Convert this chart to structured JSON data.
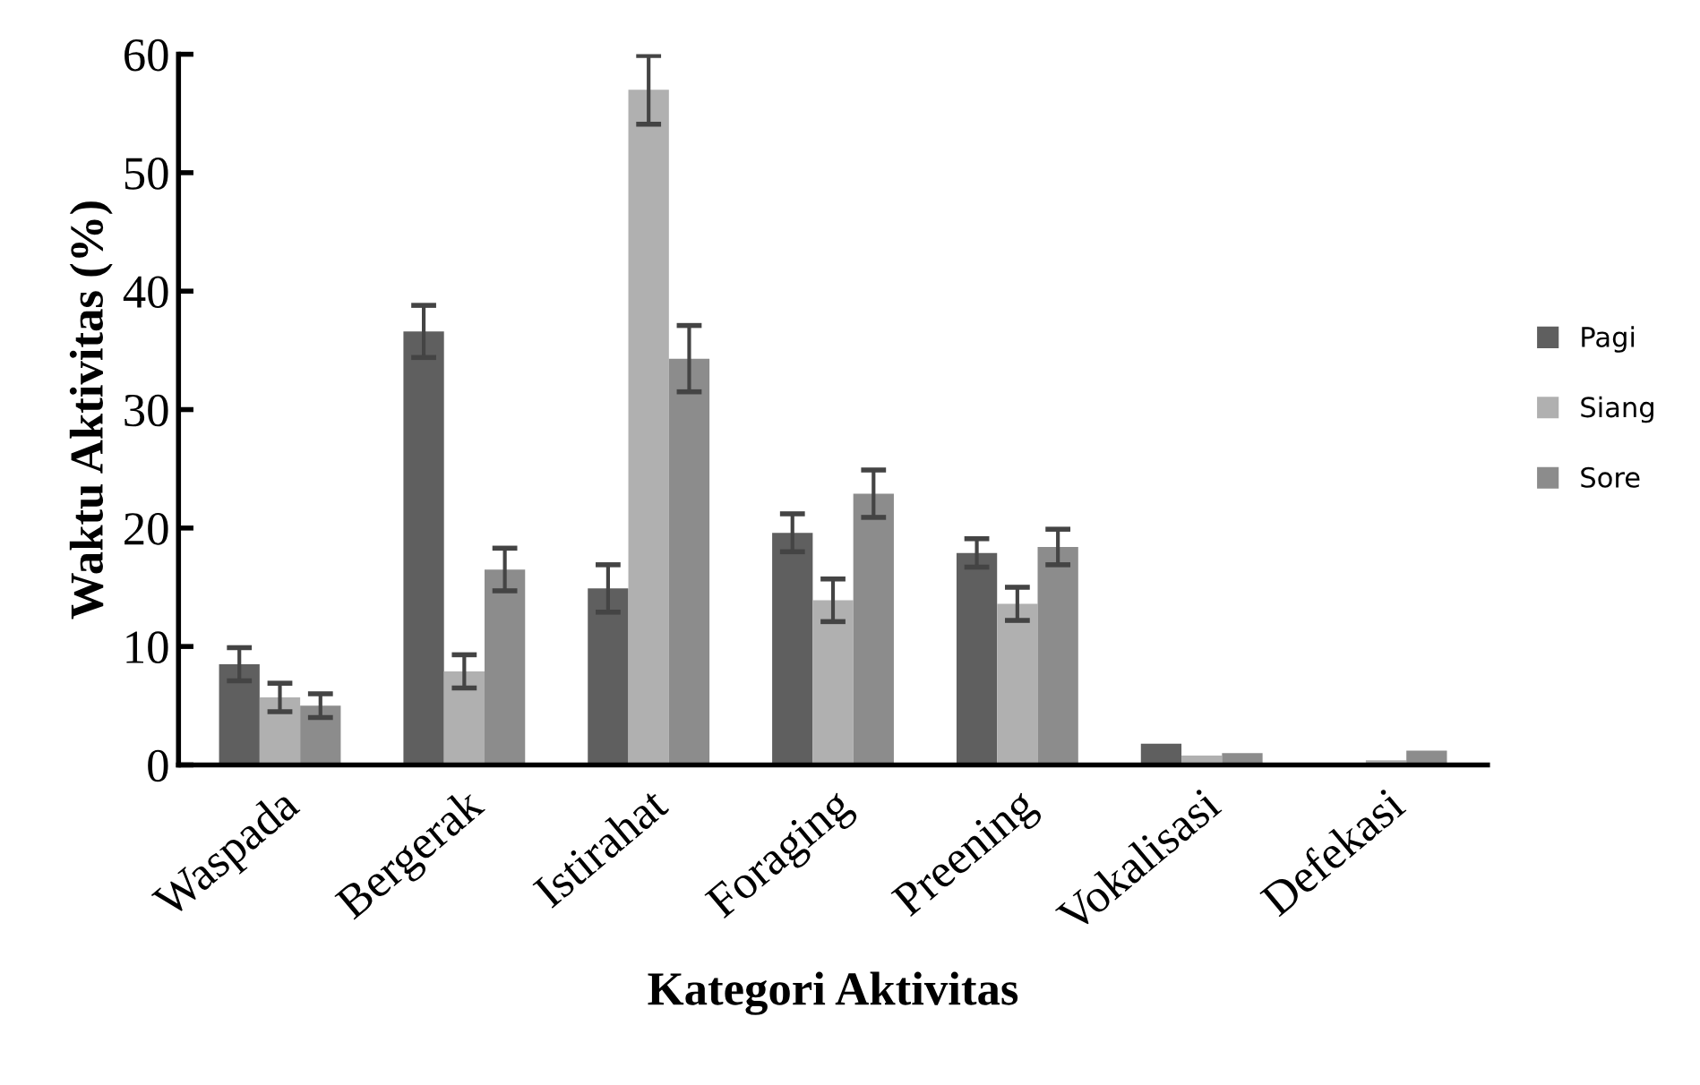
{
  "chart_data": {
    "type": "bar",
    "xlabel": "Kategori Aktivitas",
    "ylabel": "Waktu Aktivitas (%)",
    "categories": [
      "Waspada",
      "Bergerak",
      "Istirahat",
      "Foraging",
      "Preening",
      "Vokalisasi",
      "Defekasi"
    ],
    "series": [
      {
        "name": "Pagi",
        "color": "#5f5f5f",
        "values": [
          8.5,
          36.6,
          14.9,
          19.6,
          17.9,
          1.8,
          0
        ],
        "errors": [
          1.4,
          2.2,
          2.0,
          1.6,
          1.2,
          null,
          null
        ]
      },
      {
        "name": "Siang",
        "color": "#b0b0b0",
        "values": [
          5.7,
          7.9,
          57.0,
          13.9,
          13.6,
          0.8,
          0.4
        ],
        "errors": [
          1.2,
          1.4,
          2.9,
          1.8,
          1.4,
          null,
          null
        ]
      },
      {
        "name": "Sore",
        "color": "#8c8c8c",
        "values": [
          5.0,
          16.5,
          34.3,
          22.9,
          18.4,
          1.0,
          1.2
        ],
        "errors": [
          1.0,
          1.8,
          2.8,
          2.0,
          1.5,
          null,
          null
        ]
      }
    ],
    "ylim": [
      0,
      60
    ],
    "yticks": [
      0,
      10,
      20,
      30,
      40,
      50,
      60
    ],
    "grid": false,
    "legend": "right"
  }
}
